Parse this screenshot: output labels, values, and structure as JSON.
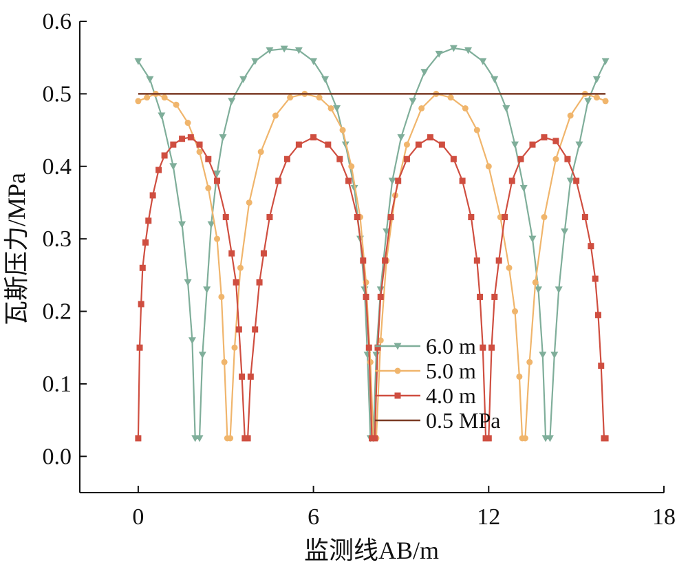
{
  "chart_data": {
    "type": "line",
    "title": "",
    "xlabel": "监测线AB/m",
    "ylabel": "瓦斯压力/MPa",
    "xlim": [
      -2,
      18
    ],
    "ylim": [
      -0.05,
      0.6
    ],
    "xticks": [
      0,
      6,
      12,
      18
    ],
    "xtick_labels": [
      "0",
      "6",
      "12",
      "18"
    ],
    "yticks": [
      0.0,
      0.1,
      0.2,
      0.3,
      0.4,
      0.5,
      0.6
    ],
    "ytick_labels": [
      "0.0",
      "0.1",
      "0.2",
      "0.3",
      "0.4",
      "0.5",
      "0.6"
    ],
    "grid": false,
    "legend_position": "center-right",
    "series": [
      {
        "name": "6.0 m",
        "color": "#7fae9a",
        "marker": "triangle-down",
        "x": [
          0,
          0.4,
          0.8,
          1.2,
          1.5,
          1.7,
          1.85,
          1.95,
          2.1,
          2.2,
          2.35,
          2.5,
          2.7,
          2.9,
          3.2,
          3.6,
          4.0,
          4.5,
          5.0,
          5.5,
          6.0,
          6.4,
          6.8,
          7.1,
          7.4,
          7.6,
          7.75,
          7.85,
          7.95,
          8.05,
          8.15,
          8.3,
          8.5,
          8.7,
          9.0,
          9.4,
          9.8,
          10.3,
          10.8,
          11.3,
          11.8,
          12.2,
          12.6,
          12.9,
          13.2,
          13.5,
          13.7,
          13.85,
          13.95,
          14.1,
          14.25,
          14.4,
          14.6,
          14.8,
          15.1,
          15.4,
          15.7,
          16.0
        ],
        "y": [
          0.545,
          0.52,
          0.47,
          0.4,
          0.32,
          0.24,
          0.16,
          0.025,
          0.025,
          0.14,
          0.23,
          0.32,
          0.39,
          0.44,
          0.49,
          0.52,
          0.545,
          0.56,
          0.562,
          0.56,
          0.545,
          0.52,
          0.48,
          0.43,
          0.37,
          0.3,
          0.23,
          0.14,
          0.025,
          0.025,
          0.14,
          0.23,
          0.31,
          0.38,
          0.44,
          0.49,
          0.53,
          0.555,
          0.563,
          0.56,
          0.545,
          0.52,
          0.48,
          0.43,
          0.37,
          0.3,
          0.23,
          0.14,
          0.025,
          0.025,
          0.14,
          0.23,
          0.31,
          0.38,
          0.43,
          0.49,
          0.52,
          0.545
        ]
      },
      {
        "name": "5.0 m",
        "color": "#f0b56c",
        "marker": "circle",
        "x": [
          0,
          0.3,
          0.6,
          0.9,
          1.3,
          1.7,
          2.1,
          2.4,
          2.7,
          2.85,
          2.95,
          3.05,
          3.15,
          3.3,
          3.5,
          3.8,
          4.2,
          4.7,
          5.2,
          5.7,
          6.2,
          6.6,
          7.0,
          7.3,
          7.6,
          7.8,
          7.95,
          8.05,
          8.15,
          8.3,
          8.5,
          8.8,
          9.2,
          9.7,
          10.2,
          10.7,
          11.2,
          11.6,
          12.0,
          12.4,
          12.7,
          12.9,
          13.05,
          13.15,
          13.25,
          13.4,
          13.6,
          13.9,
          14.3,
          14.8,
          15.3,
          15.7,
          16.0
        ],
        "y": [
          0.49,
          0.495,
          0.5,
          0.495,
          0.485,
          0.46,
          0.42,
          0.37,
          0.3,
          0.22,
          0.13,
          0.025,
          0.025,
          0.15,
          0.26,
          0.35,
          0.42,
          0.47,
          0.495,
          0.5,
          0.495,
          0.48,
          0.45,
          0.4,
          0.33,
          0.24,
          0.13,
          0.025,
          0.025,
          0.16,
          0.27,
          0.36,
          0.43,
          0.48,
          0.5,
          0.495,
          0.48,
          0.45,
          0.4,
          0.33,
          0.26,
          0.2,
          0.11,
          0.025,
          0.025,
          0.13,
          0.24,
          0.33,
          0.41,
          0.47,
          0.5,
          0.495,
          0.49
        ]
      },
      {
        "name": "4.0 m",
        "color": "#cf4e40",
        "marker": "square",
        "x": [
          0,
          0.05,
          0.1,
          0.15,
          0.25,
          0.35,
          0.5,
          0.7,
          0.9,
          1.2,
          1.5,
          1.8,
          2.1,
          2.4,
          2.7,
          3.0,
          3.2,
          3.35,
          3.45,
          3.55,
          3.65,
          3.75,
          3.85,
          4.0,
          4.15,
          4.3,
          4.5,
          4.8,
          5.1,
          5.5,
          6.0,
          6.5,
          6.9,
          7.2,
          7.5,
          7.7,
          7.8,
          7.9,
          8.0,
          8.1,
          8.2,
          8.3,
          8.45,
          8.65,
          8.9,
          9.2,
          9.6,
          10.0,
          10.4,
          10.8,
          11.1,
          11.4,
          11.6,
          11.7,
          11.8,
          11.9,
          12.0,
          12.1,
          12.2,
          12.35,
          12.55,
          12.8,
          13.1,
          13.5,
          13.9,
          14.3,
          14.7,
          15.0,
          15.3,
          15.5,
          15.65,
          15.75,
          15.85,
          15.95,
          16.0
        ],
        "y": [
          0.025,
          0.15,
          0.21,
          0.26,
          0.295,
          0.325,
          0.36,
          0.395,
          0.415,
          0.43,
          0.438,
          0.44,
          0.43,
          0.41,
          0.38,
          0.33,
          0.28,
          0.24,
          0.175,
          0.11,
          0.025,
          0.025,
          0.11,
          0.175,
          0.24,
          0.28,
          0.33,
          0.38,
          0.41,
          0.43,
          0.44,
          0.43,
          0.41,
          0.38,
          0.33,
          0.27,
          0.22,
          0.15,
          0.025,
          0.025,
          0.15,
          0.22,
          0.27,
          0.33,
          0.38,
          0.41,
          0.43,
          0.44,
          0.43,
          0.41,
          0.38,
          0.33,
          0.27,
          0.22,
          0.15,
          0.025,
          0.025,
          0.15,
          0.22,
          0.27,
          0.33,
          0.38,
          0.41,
          0.43,
          0.44,
          0.435,
          0.41,
          0.38,
          0.33,
          0.29,
          0.245,
          0.195,
          0.125,
          0.025,
          0.025
        ]
      },
      {
        "name": "0.5 MPa",
        "color": "#7a3a24",
        "marker": "none",
        "x": [
          0,
          16
        ],
        "y": [
          0.5,
          0.5
        ]
      }
    ]
  }
}
